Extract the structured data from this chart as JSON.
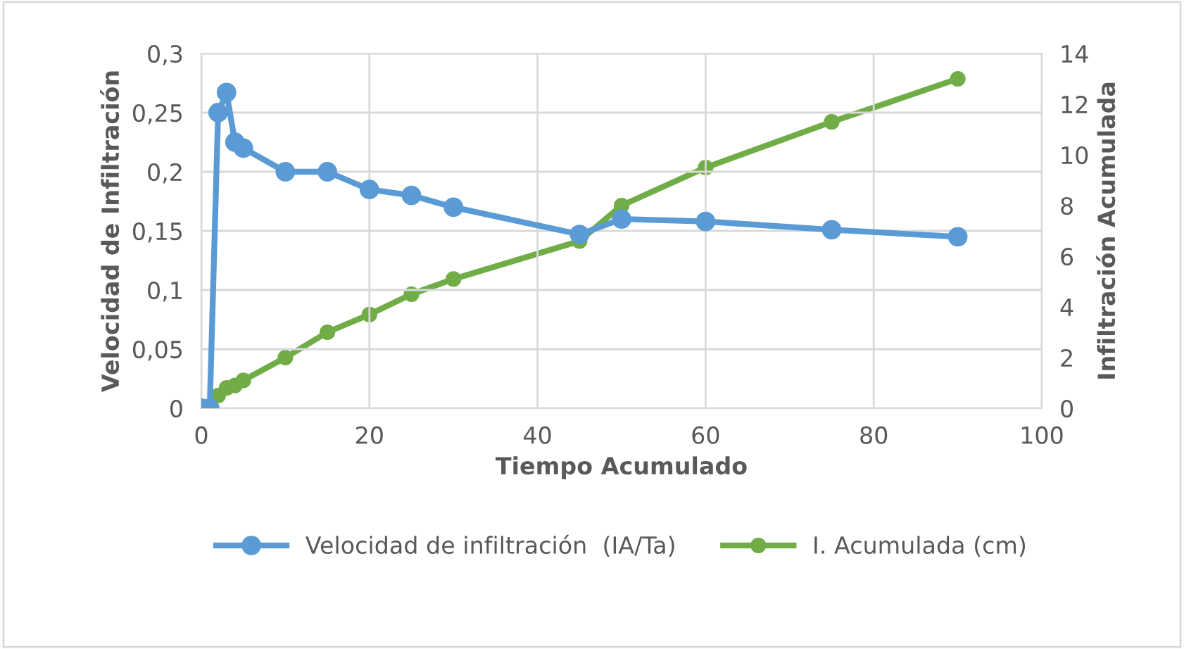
{
  "chart_data": {
    "type": "line",
    "x": [
      0,
      1,
      2,
      3,
      4,
      5,
      10,
      15,
      20,
      25,
      30,
      45,
      50,
      60,
      75,
      90
    ],
    "series": [
      {
        "name": "Velocidad de infiltración  (IA/Ta)",
        "color": "#5b9bd5",
        "values": [
          0,
          0,
          0.25,
          0.267,
          0.225,
          0.22,
          0.2,
          0.2,
          0.185,
          0.18,
          0.17,
          0.147,
          0.16,
          0.158,
          0.151,
          0.145
        ]
      },
      {
        "name": "I. Acumulada (cm)",
        "color": "#70ad47",
        "axis": "y2",
        "values": [
          0,
          0,
          0.5,
          0.8,
          0.9,
          1.1,
          2,
          3,
          3.7,
          4.5,
          5.1,
          6.6,
          8,
          9.5,
          11.3,
          13
        ]
      }
    ],
    "xlabel": "Tiempo Acumulado",
    "ylabel": "Velocidad de Infiltración",
    "y2label": "Infiltración Acumulada",
    "xlim": [
      0,
      100
    ],
    "xticks": [
      0,
      20,
      40,
      60,
      80,
      100
    ],
    "ylim": [
      0,
      0.3
    ],
    "yticks": [
      0,
      {
        "value": 0.05,
        "label": "0,05"
      },
      {
        "value": 0.1,
        "label": "0,1"
      },
      {
        "value": 0.15,
        "label": "0,15"
      },
      {
        "value": 0.2,
        "label": "0,2"
      },
      {
        "value": 0.25,
        "label": "0,25"
      },
      {
        "value": 0.3,
        "label": "0,3"
      }
    ],
    "y2lim": [
      0,
      14
    ],
    "y2ticks": [
      0,
      2,
      4,
      6,
      8,
      10,
      12,
      14
    ],
    "grid": true,
    "legend": "bottom",
    "marker": "circle",
    "line_style": "solid"
  }
}
